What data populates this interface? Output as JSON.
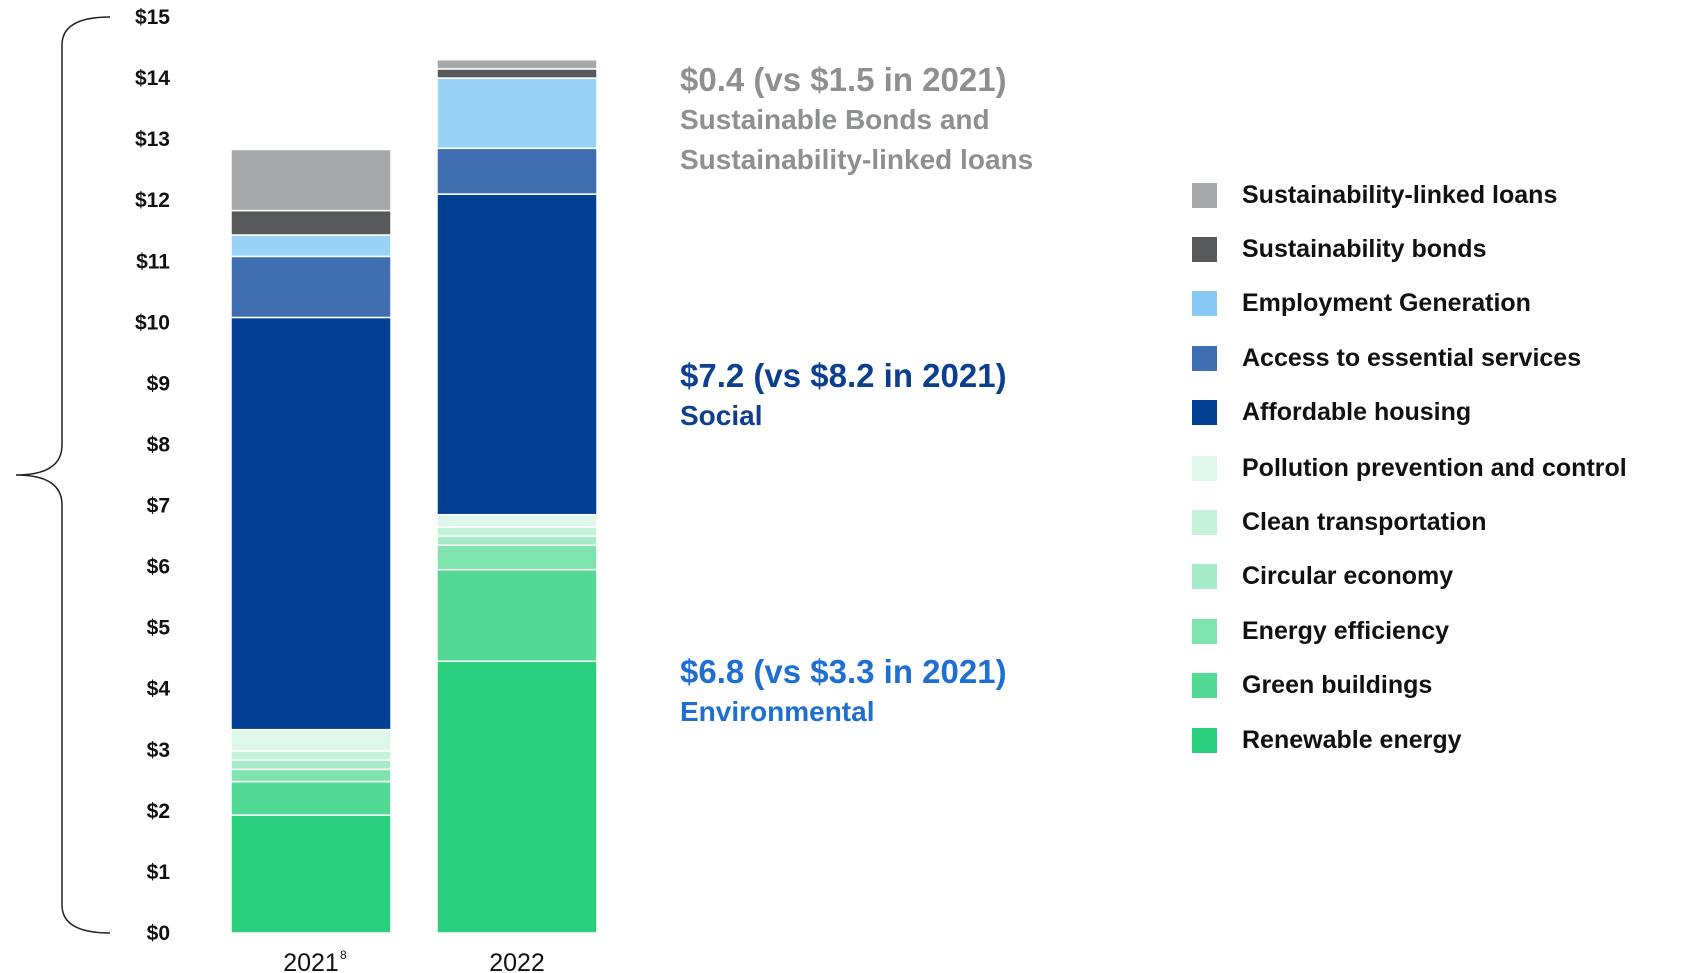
{
  "chart_data": {
    "type": "bar",
    "stacked": true,
    "categories": [
      "2021",
      "2022"
    ],
    "category_footnotes": [
      "8",
      ""
    ],
    "ylim": [
      0,
      15
    ],
    "y_ticks": [
      "$0",
      "$1",
      "$2",
      "$3",
      "$4",
      "$5",
      "$6",
      "$7",
      "$8",
      "$9",
      "$10",
      "$11",
      "$12",
      "$13",
      "$14",
      "$15"
    ],
    "series": [
      {
        "name": "Renewable energy",
        "color": "#2ad07e",
        "values": [
          1.93,
          4.45
        ]
      },
      {
        "name": "Green buildings",
        "color": "#52d993",
        "values": [
          0.55,
          1.5
        ]
      },
      {
        "name": "Energy efficiency",
        "color": "#7fe3ae",
        "values": [
          0.2,
          0.4
        ]
      },
      {
        "name": "Circular economy",
        "color": "#a6ebc7",
        "values": [
          0.15,
          0.15
        ]
      },
      {
        "name": "Clean transportation",
        "color": "#c5f2da",
        "values": [
          0.15,
          0.15
        ]
      },
      {
        "name": "Pollution prevention and control",
        "color": "#ddf7ea",
        "values": [
          0.35,
          0.2
        ]
      },
      {
        "name": "Affordable housing",
        "color": "#013f93",
        "values": [
          6.75,
          5.25
        ]
      },
      {
        "name": "Access to essential services",
        "color": "#3f6fb1",
        "values": [
          1.0,
          0.75
        ]
      },
      {
        "name": "Employment Generation",
        "color": "#9ad3f8",
        "values": [
          0.35,
          1.15
        ]
      },
      {
        "name": "Sustainability bonds",
        "color": "#58595b",
        "values": [
          0.4,
          0.15
        ]
      },
      {
        "name": "Sustainability-linked loans",
        "color": "#a7a8aa",
        "values": [
          1.0,
          0.15
        ]
      }
    ],
    "annotations": [
      {
        "headline": "$0.4 (vs $1.5 in 2021)",
        "label": "Sustainable Bonds and Sustainability-linked loans",
        "color": "#8e8f91"
      },
      {
        "headline": "$7.2 (vs $8.2 in 2021)",
        "label": "Social",
        "color": "#0d3f8f"
      },
      {
        "headline": "$6.8 (vs $3.3 in 2021)",
        "label": "Environmental",
        "color": "#1e6fd0"
      }
    ],
    "legend_placement": "right",
    "grid": false
  },
  "annotations": {
    "sust": {
      "headline": "$0.4 (vs $1.5 in 2021)",
      "line1": "Sustainable Bonds and",
      "line2": "Sustainability-linked loans"
    },
    "social": {
      "headline": "$7.2 (vs $8.2 in 2021)",
      "label": "Social"
    },
    "env": {
      "headline": "$6.8 (vs $3.3 in 2021)",
      "label": "Environmental"
    }
  },
  "legend": [
    {
      "label": "Sustainability-linked loans",
      "color": "#a7a8aa"
    },
    {
      "label": "Sustainability bonds",
      "color": "#58595b"
    },
    {
      "label": "Employment Generation",
      "color": "#88c9f5"
    },
    {
      "label": "Access to essential services",
      "color": "#3f6fb1"
    },
    {
      "label": "Affordable housing",
      "color": "#013f93"
    },
    {
      "label": "Pollution prevention and control",
      "color": "#ddf7ea"
    },
    {
      "label": "Clean transportation",
      "color": "#c5f2da"
    },
    {
      "label": "Circular economy",
      "color": "#a6ebc7"
    },
    {
      "label": "Energy efficiency",
      "color": "#7fe3ae"
    },
    {
      "label": "Green buildings",
      "color": "#52d993"
    },
    {
      "label": "Renewable energy",
      "color": "#2ad07e"
    }
  ]
}
